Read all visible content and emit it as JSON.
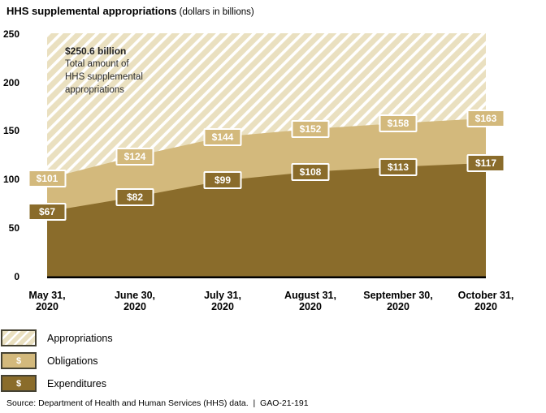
{
  "title": {
    "main": "HHS supplemental appropriations",
    "unit": " (dollars in billions)"
  },
  "colors": {
    "obligations": "#d3b97c",
    "expenditures": "#8a6c2b",
    "hatch_fill": "#eae0c0",
    "hatch_stripe": "#ffffff",
    "axis": "#000000",
    "label_border": "#ffffff",
    "legend_border": "#454233"
  },
  "chart_data": {
    "type": "area",
    "title": "HHS supplemental appropriations",
    "subtitle": "(dollars in billions)",
    "x_labels": [
      [
        "May 31,",
        "2020"
      ],
      [
        "June 30,",
        "2020"
      ],
      [
        "July 31,",
        "2020"
      ],
      [
        "August 31,",
        "2020"
      ],
      [
        "September 30,",
        "2020"
      ],
      [
        "October 31,",
        "2020"
      ]
    ],
    "ylim": [
      0,
      250.6
    ],
    "yticks": [
      0,
      50,
      100,
      150,
      200,
      250
    ],
    "grid": false,
    "legend_position": "bottom-left",
    "series": [
      {
        "name": "Appropriations",
        "style": "diagonal-hatch",
        "value": 250.6
      },
      {
        "name": "Obligations",
        "style": "solid",
        "label_prefix": "$",
        "values": [
          101,
          124,
          144,
          152,
          158,
          163
        ]
      },
      {
        "name": "Expenditures",
        "style": "solid",
        "label_prefix": "$",
        "values": [
          67,
          82,
          99,
          108,
          113,
          117
        ]
      }
    ],
    "annotation": {
      "headline": "$250.6 billion",
      "lines": [
        "Total amount of",
        "HHS supplemental",
        "appropriations"
      ]
    }
  },
  "legend": {
    "items": [
      {
        "label": "Appropriations",
        "swatch": "hatch",
        "symbol": ""
      },
      {
        "label": "Obligations",
        "swatch": "obligations",
        "symbol": "$"
      },
      {
        "label": "Expenditures",
        "swatch": "expenditures",
        "symbol": "$"
      }
    ]
  },
  "source": "Source: Department of Health and Human Services (HHS) data.  |  GAO-21-191"
}
